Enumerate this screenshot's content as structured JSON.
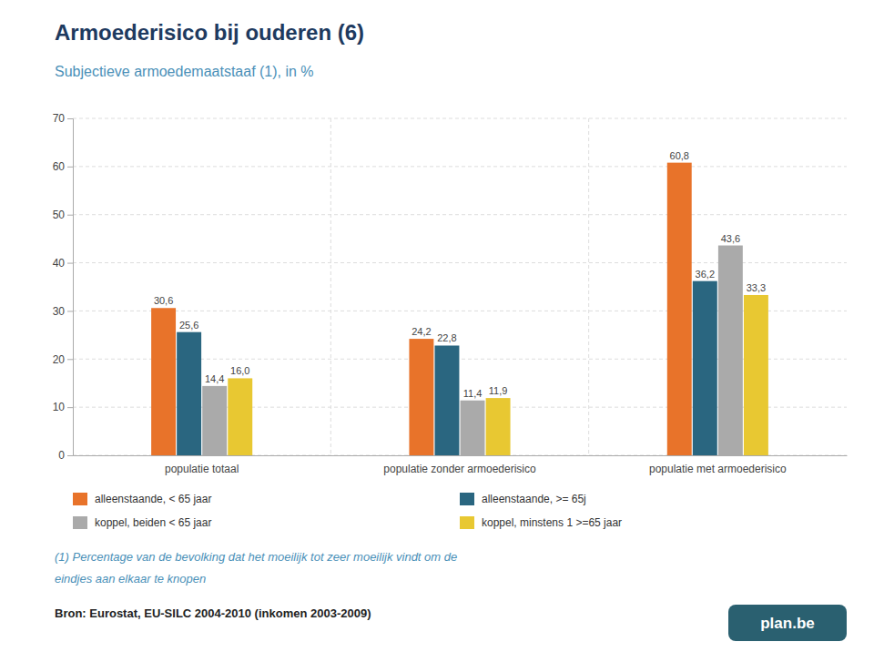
{
  "chart_data": {
    "type": "bar",
    "title": "Armoederisico bij ouderen (6)",
    "subtitle": "Subjectieve armoedemaatstaaf (1), in %",
    "categories": [
      "populatie totaal",
      "populatie zonder armoederisico",
      "populatie met armoederisico"
    ],
    "series": [
      {
        "name": "alleenstaande, < 65 jaar",
        "color": "#E8732A",
        "values": [
          30.6,
          24.2,
          60.8
        ],
        "value_labels": [
          "30,6",
          "24,2",
          "60,8"
        ]
      },
      {
        "name": "alleenstaande, >= 65j",
        "color": "#2A6680",
        "values": [
          25.6,
          22.8,
          36.2
        ],
        "value_labels": [
          "25,6",
          "22,8",
          "36,2"
        ]
      },
      {
        "name": "koppel, beiden < 65 jaar",
        "color": "#AAAAAA",
        "values": [
          14.4,
          11.4,
          43.6
        ],
        "value_labels": [
          "14,4",
          "11,4",
          "43,6"
        ]
      },
      {
        "name": "koppel, minstens 1 >=65 jaar",
        "color": "#E8C832",
        "values": [
          16.0,
          11.9,
          33.3
        ],
        "value_labels": [
          "16,0",
          "11,9",
          "33,3"
        ]
      }
    ],
    "ylim": [
      0,
      70
    ],
    "yticks": [
      0,
      10,
      20,
      30,
      40,
      50,
      60,
      70
    ],
    "grid": true,
    "data_labels": true,
    "legend": "bottom",
    "annotations": [
      "(1) Percentage van de bevolking dat het moeilijk tot zeer moeilijk vindt om de",
      "eindjes aan elkaar te knopen",
      "Bron: Eurostat, EU-SILC 2004-2010 (inkomen 2003-2009)",
      "plan.be"
    ]
  }
}
